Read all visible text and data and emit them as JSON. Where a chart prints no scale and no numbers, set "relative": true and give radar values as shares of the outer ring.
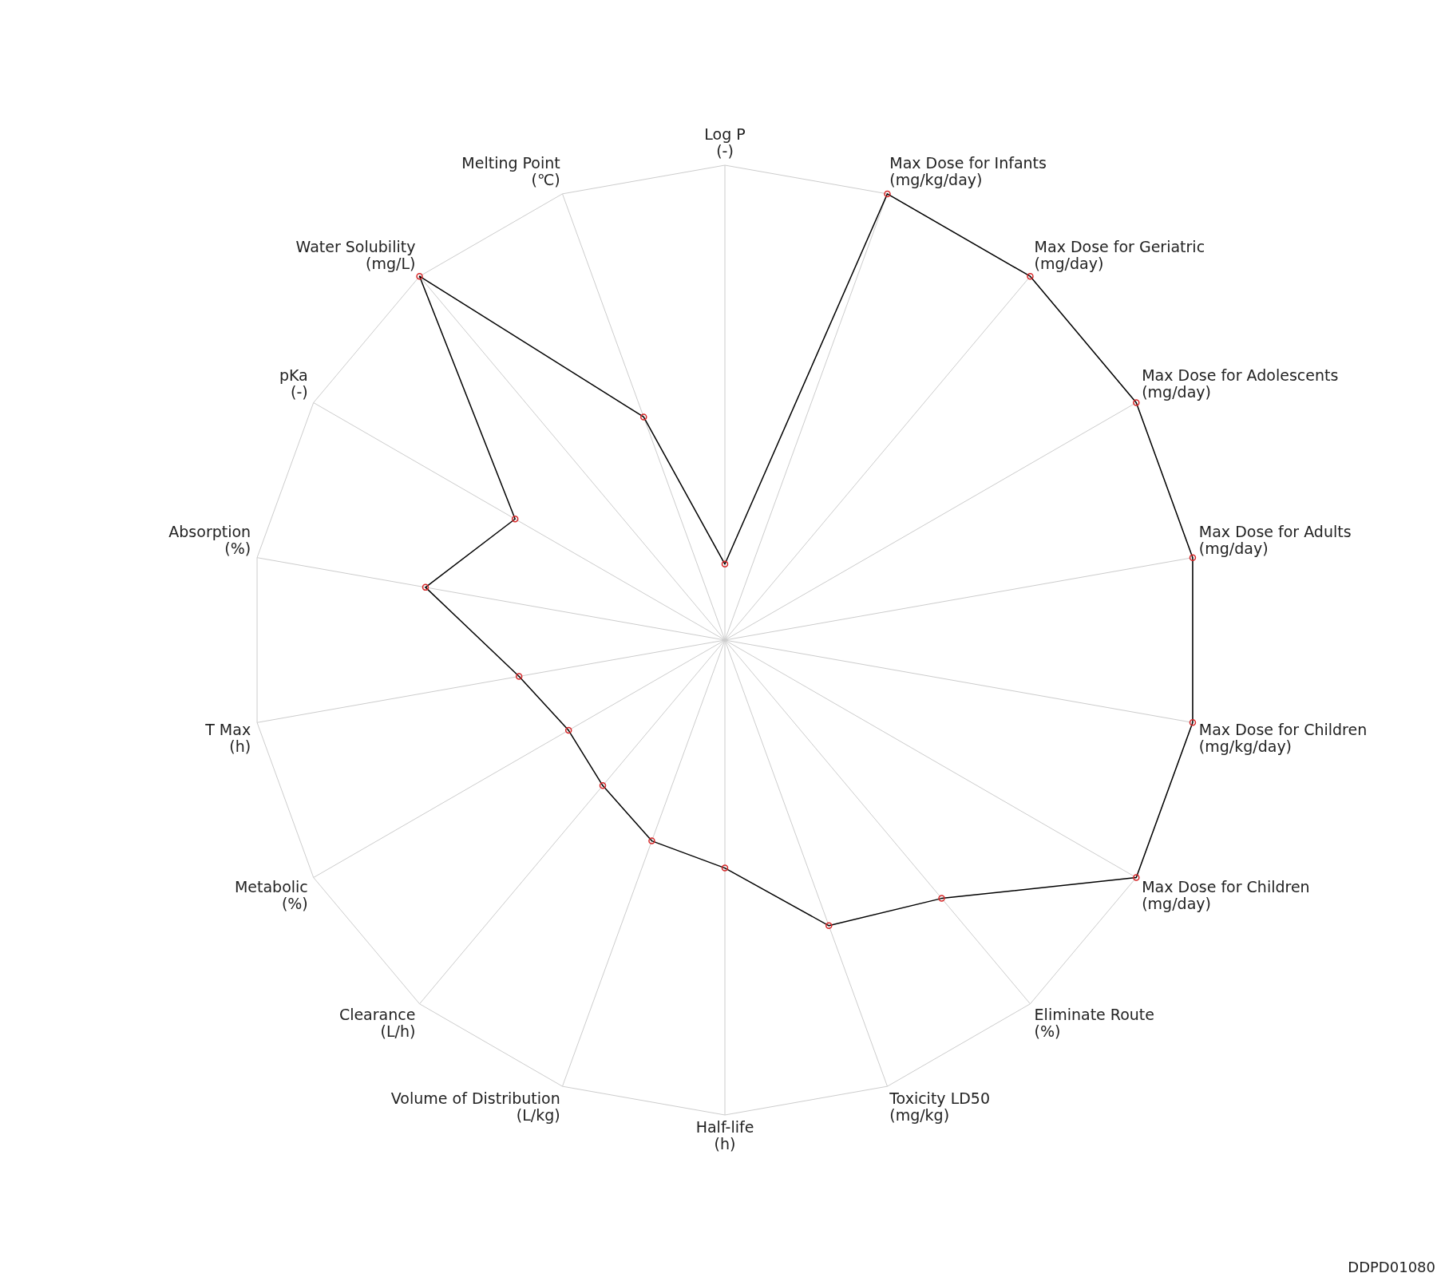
{
  "chart_data": {
    "type": "radar",
    "relative": true,
    "categories": [
      "Log P\n(-)",
      "Max Dose for Infants\n(mg/kg/day)",
      "Max Dose for Geriatric\n(mg/day)",
      "Max Dose for Adolescents\n(mg/day)",
      "Max Dose for Adults\n(mg/day)",
      "Max Dose for Children\n(mg/kg/day)",
      "Max Dose for Children\n(mg/day)",
      "Eliminate Route\n(%)",
      "Toxicity LD50\n(mg/kg)",
      "Half-life\n(h)",
      "Volume of Distribution\n(L/kg)",
      "Clearance\n(L/h)",
      "Metabolic\n(%)",
      "T Max\n(h)",
      "Absorption\n(%)",
      "pKa\n(-)",
      "Water Solubility\n(mg/L)",
      "Melting Point\n(℃)"
    ],
    "series": [
      {
        "color": "#000000",
        "values": [
          0.16,
          1,
          1,
          1,
          1,
          1,
          1,
          0.71,
          0.64,
          0.48,
          0.45,
          0.4,
          0.38,
          0.44,
          0.64,
          0.51,
          1,
          0.5
        ]
      }
    ],
    "marker": "circle",
    "annotations": [
      "DDPD01080"
    ]
  }
}
